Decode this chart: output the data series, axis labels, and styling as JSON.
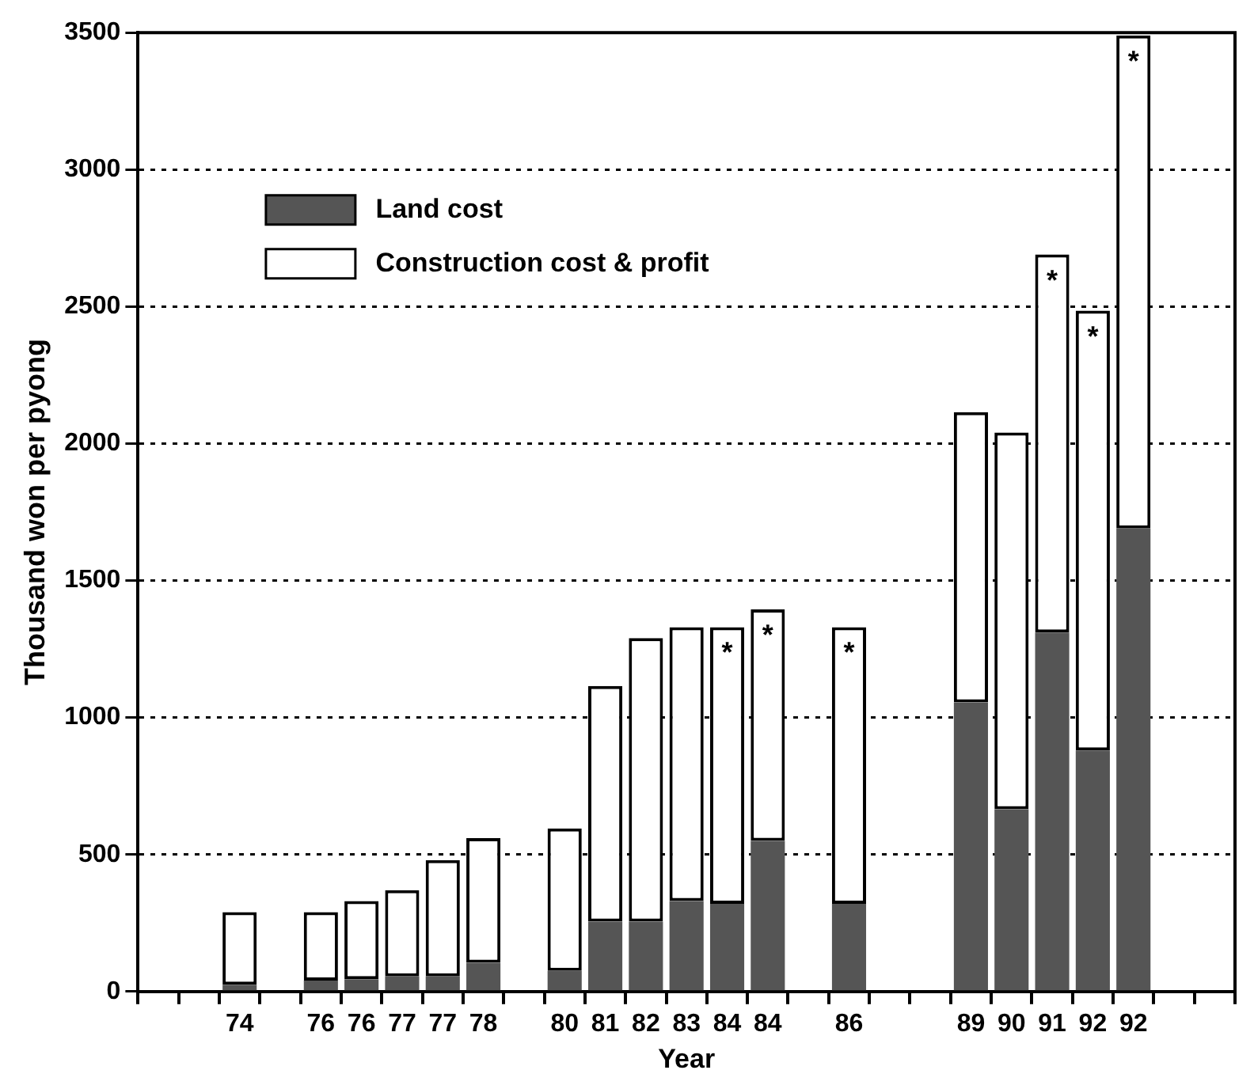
{
  "chart_data": {
    "type": "bar",
    "xlabel": "Year",
    "ylabel": "Thousand won per pyong",
    "categories": [
      null,
      null,
      "74",
      null,
      "76",
      "76",
      "77",
      "77",
      "78",
      null,
      "80",
      "81",
      "82",
      "83",
      "84",
      "84",
      null,
      "86",
      null,
      null,
      "89",
      "90",
      "91",
      "92",
      "92",
      null,
      null
    ],
    "series": [
      {
        "name": "Land cost",
        "color": "#555555",
        "values": [
          null,
          null,
          25,
          null,
          40,
          45,
          55,
          55,
          105,
          null,
          75,
          255,
          255,
          330,
          320,
          550,
          null,
          320,
          null,
          null,
          1055,
          665,
          1310,
          880,
          1690,
          null,
          null
        ]
      },
      {
        "name": "Construction cost & profit",
        "color": "#ffffff",
        "values": [
          null,
          null,
          265,
          null,
          250,
          285,
          315,
          425,
          455,
          null,
          520,
          860,
          1035,
          1000,
          1010,
          845,
          null,
          1010,
          null,
          null,
          1060,
          1375,
          1380,
          1605,
          1800,
          null,
          null
        ],
        "value_labels": [
          null,
          null,
          null,
          null,
          null,
          null,
          null,
          null,
          null,
          null,
          null,
          null,
          null,
          null,
          "*",
          "*",
          null,
          "*",
          null,
          null,
          null,
          null,
          "*",
          "*",
          "*",
          null,
          null
        ]
      }
    ],
    "stacked": true,
    "ylim": [
      0,
      3500
    ],
    "yticks": [
      0,
      500,
      1000,
      1500,
      2000,
      2500,
      3000,
      3500
    ],
    "grid": "y",
    "legend": "top left"
  }
}
